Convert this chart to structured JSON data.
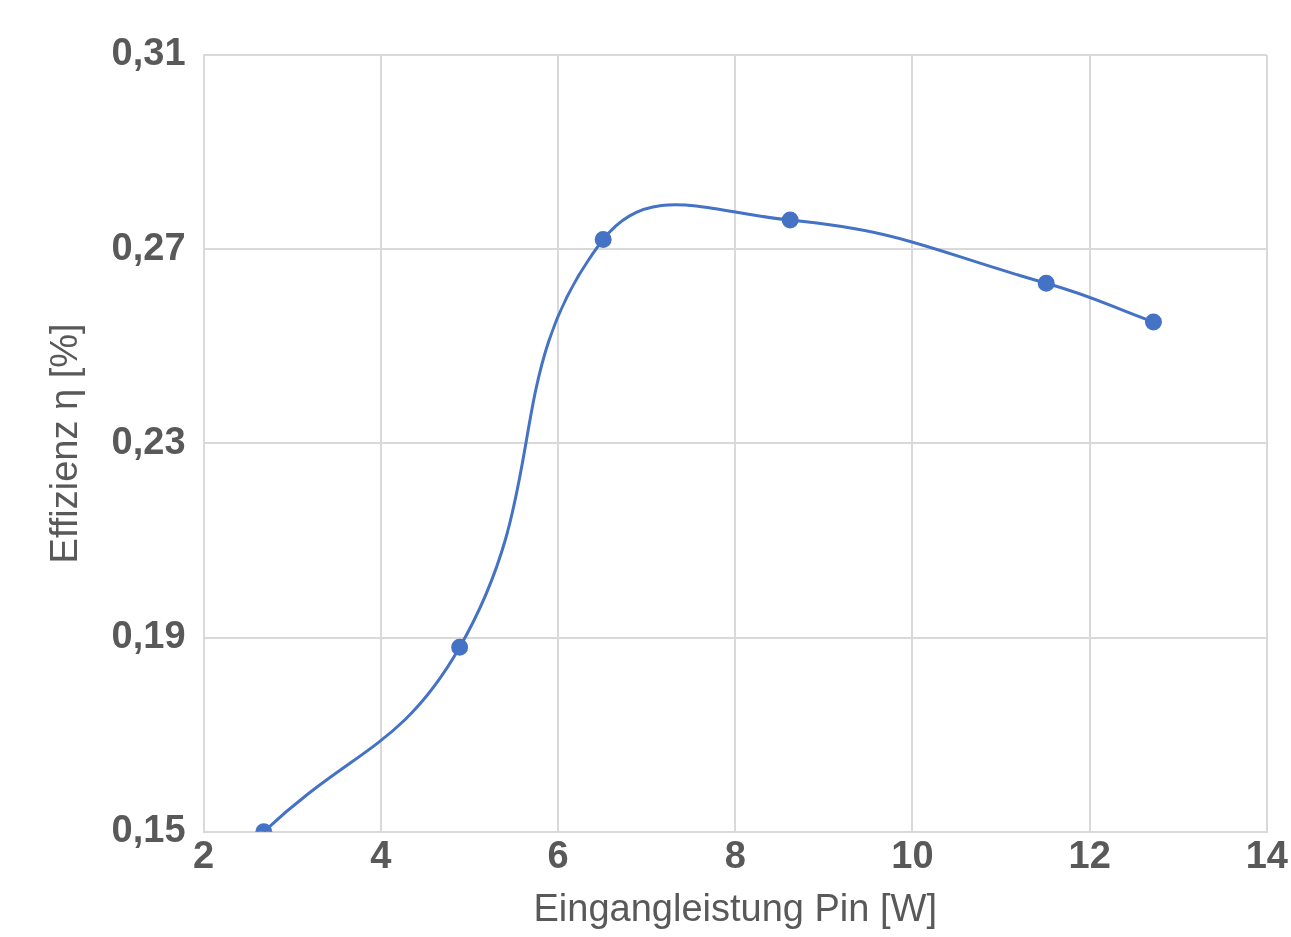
{
  "chart_data": {
    "type": "line",
    "xlabel": "Eingangleistung Pin [W]",
    "ylabel": "Effizienz η [%]",
    "x": [
      2.68,
      4.89,
      6.51,
      8.62,
      11.51,
      12.72
    ],
    "series": [
      {
        "color": "#4472c4",
        "values": [
          0.15,
          0.188,
          0.272,
          0.276,
          0.263,
          0.255
        ]
      }
    ],
    "xlim": [
      2,
      14
    ],
    "xticks": [
      2,
      4,
      6,
      8,
      10,
      12,
      14
    ],
    "ylim": [
      0.15,
      0.31
    ],
    "yticks": [
      {
        "value": 0.15,
        "label": "0,15"
      },
      {
        "value": 0.19,
        "label": "0,19"
      },
      {
        "value": 0.23,
        "label": "0,23"
      },
      {
        "value": 0.27,
        "label": "0,27"
      },
      {
        "value": 0.31,
        "label": "0,31"
      }
    ],
    "grid": true,
    "legend": false,
    "marker": "circle",
    "line_style": "solid"
  }
}
